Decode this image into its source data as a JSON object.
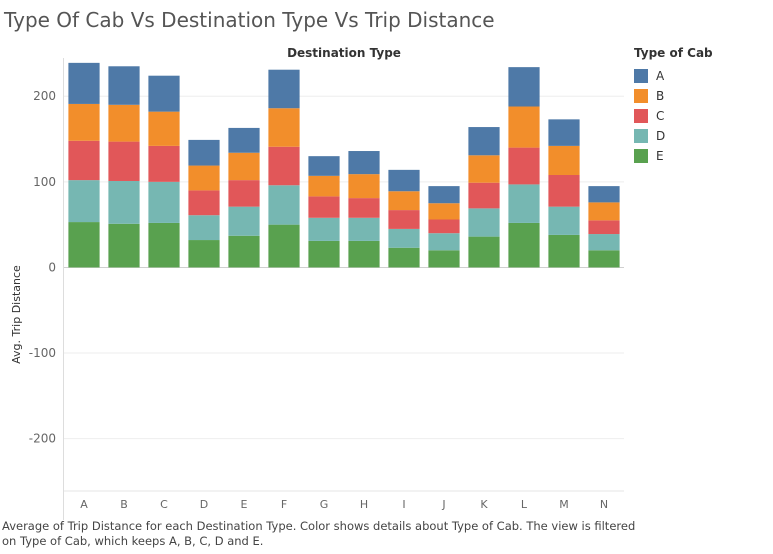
{
  "title": "Type Of Cab Vs Destination Type Vs Trip Distance",
  "legend": {
    "title": "Type of Cab",
    "items": [
      {
        "label": "A",
        "color": "#4e79a7"
      },
      {
        "label": "B",
        "color": "#f28e2b"
      },
      {
        "label": "C",
        "color": "#e15759"
      },
      {
        "label": "D",
        "color": "#76b7b2"
      },
      {
        "label": "E",
        "color": "#59a14f"
      }
    ]
  },
  "caption": "Average of Trip Distance for each Destination Type.  Color shows details about Type of Cab. The view is filtered on Type of Cab, which keeps A, B, C, D and E.",
  "chart_data": {
    "type": "bar",
    "stacked": true,
    "title": "",
    "xlabel": "Destination Type",
    "ylabel": "Avg. Trip Distance",
    "x_axis_position": "top",
    "ylim": [
      -260,
      240
    ],
    "yticks": [
      -200,
      -100,
      0,
      100,
      200
    ],
    "grid": true,
    "legend_position": "right",
    "categories": [
      "A",
      "B",
      "C",
      "D",
      "E",
      "F",
      "G",
      "H",
      "I",
      "J",
      "K",
      "L",
      "M",
      "N"
    ],
    "series": [
      {
        "name": "E",
        "color": "#59a14f",
        "values": [
          53,
          51,
          52,
          32,
          37,
          50,
          31,
          31,
          23,
          20,
          36,
          52,
          38,
          20
        ]
      },
      {
        "name": "D",
        "color": "#76b7b2",
        "values": [
          49,
          50,
          48,
          29,
          34,
          46,
          27,
          27,
          22,
          20,
          33,
          45,
          33,
          19
        ]
      },
      {
        "name": "C",
        "color": "#e15759",
        "values": [
          46,
          46,
          42,
          29,
          31,
          45,
          25,
          23,
          22,
          16,
          30,
          43,
          37,
          16
        ]
      },
      {
        "name": "B",
        "color": "#f28e2b",
        "values": [
          43,
          43,
          40,
          29,
          32,
          45,
          24,
          28,
          22,
          19,
          32,
          48,
          34,
          21
        ]
      },
      {
        "name": "A",
        "color": "#4e79a7",
        "values": [
          48,
          45,
          42,
          30,
          29,
          45,
          23,
          27,
          25,
          20,
          33,
          46,
          31,
          19
        ]
      }
    ]
  }
}
